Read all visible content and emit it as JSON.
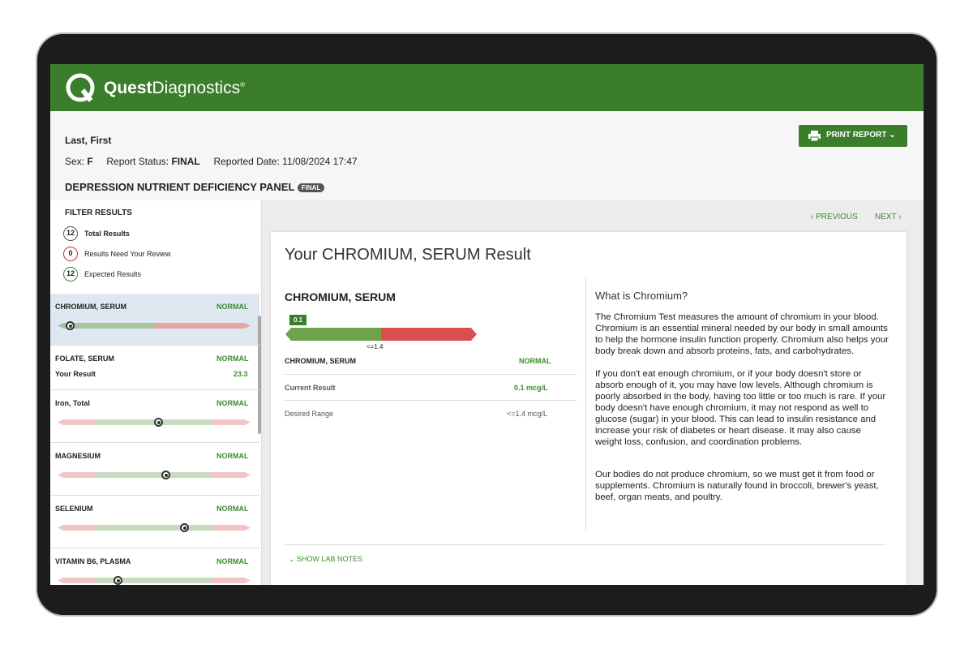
{
  "header": {
    "brand_bold": "Quest",
    "brand_light": "Diagnostics",
    "brand_mark": "®"
  },
  "patient": {
    "name": "Last, First",
    "sex_label": "Sex:",
    "sex": "F",
    "status_label": "Report Status:",
    "status": "FINAL",
    "date_label": "Reported Date:",
    "date": "11/08/2024 17:47"
  },
  "panel": {
    "title": "DEPRESSION NUTRIENT DEFICIENCY PANEL",
    "badge": "FINAL"
  },
  "print_button": "PRINT REPORT",
  "filter": {
    "title": "FILTER RESULTS",
    "items": [
      {
        "count": "12",
        "label": "Total Results"
      },
      {
        "count": "0",
        "label": "Results Need Your Review"
      },
      {
        "count": "12",
        "label": "Expected Results"
      }
    ]
  },
  "results": [
    {
      "name": "CHROMIUM, SERUM",
      "status": "NORMAL"
    },
    {
      "name": "FOLATE, SERUM",
      "status": "NORMAL",
      "result_label": "Your Result",
      "result": "23.3"
    },
    {
      "name": "Iron, Total",
      "status": "NORMAL"
    },
    {
      "name": "MAGNESIUM",
      "status": "NORMAL"
    },
    {
      "name": "SELENIUM",
      "status": "NORMAL"
    },
    {
      "name": "VITAMIN B6, PLASMA",
      "status": "NORMAL"
    }
  ],
  "nav": {
    "previous": "PREVIOUS",
    "next": "NEXT"
  },
  "detail": {
    "title": "Your CHROMIUM, SERUM Result",
    "test_name": "CHROMIUM, SERUM",
    "gauge_value": "0.1",
    "gauge_range": "<=1.4",
    "rows": [
      [
        "CHROMIUM, SERUM",
        "NORMAL"
      ],
      [
        "Current Result",
        "0.1 mcg/L"
      ],
      [
        "Desired Range",
        "<=1.4 mcg/L"
      ]
    ],
    "info_title": "What is Chromium?",
    "paragraphs": [
      "The Chromium Test measures the amount of chromium in your blood. Chromium is an essential mineral needed by our body in small amounts to help the hormone insulin function properly. Chromium also helps your body break down and absorb proteins, fats, and carbohydrates.",
      "If you don't eat enough chromium, or if your body doesn't store or absorb enough of it, you may have low levels. Although chromium is poorly absorbed in the body, having too little or too much is rare. If your body doesn't have enough chromium, it may not respond as well to glucose (sugar) in your blood. This can lead to insulin resistance and increase your risk of diabetes or heart disease. It may also cause weight loss, confusion, and coordination problems.",
      "Our bodies do not produce chromium, so we must get it from food or supplements. Chromium is naturally found in broccoli, brewer's yeast, beef, organ meats, and poultry."
    ],
    "lab_notes": "SHOW LAB NOTES"
  }
}
